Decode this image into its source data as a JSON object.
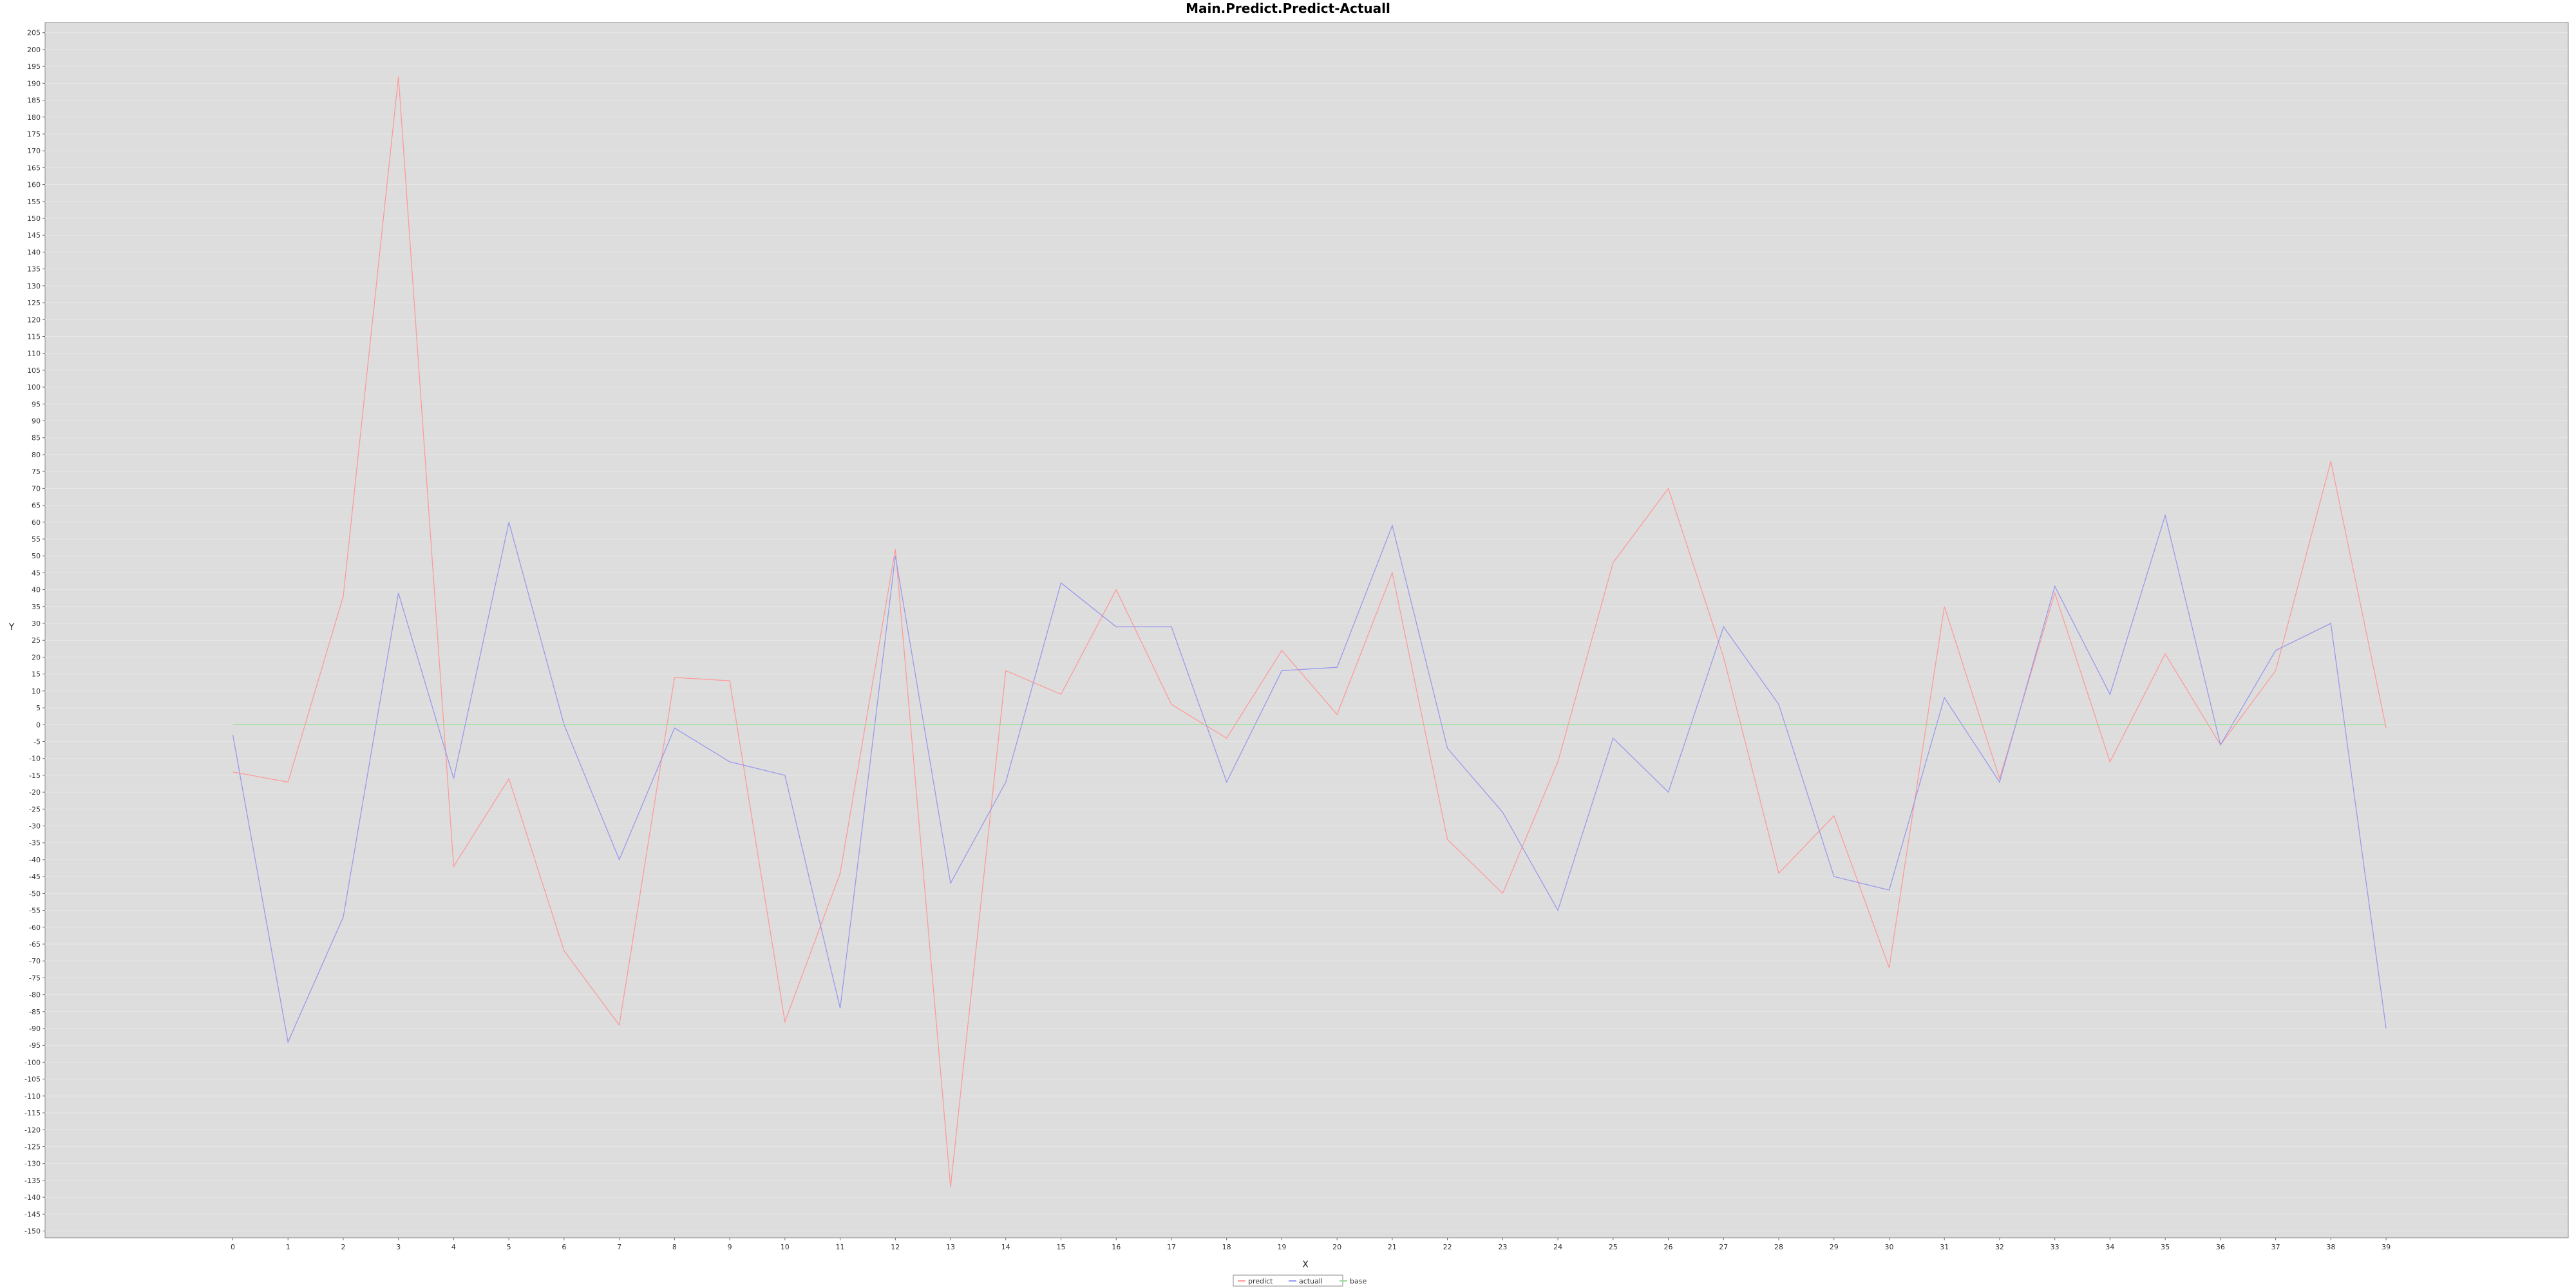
{
  "chart_data": {
    "type": "line",
    "title": "Main.Predict.Predict-Actuall",
    "xlabel": "X",
    "ylabel": "Y",
    "x": [
      0,
      1,
      2,
      3,
      4,
      5,
      6,
      7,
      8,
      9,
      10,
      11,
      12,
      13,
      14,
      15,
      16,
      17,
      18,
      19,
      20,
      21,
      22,
      23,
      24,
      25,
      26,
      27,
      28,
      29,
      30,
      31,
      32,
      33,
      34,
      35,
      36,
      37,
      38,
      39
    ],
    "xlim": [
      -3.4,
      42.3
    ],
    "ylim": [
      -152,
      208
    ],
    "ytick_step": 5,
    "grid": true,
    "legend_position": "bottom-center",
    "series": [
      {
        "name": "predict",
        "color": "#ff9999",
        "values": [
          -14,
          -17,
          38,
          192,
          -42,
          -16,
          -67,
          -89,
          14,
          13,
          -88,
          -44,
          52,
          -137,
          16,
          9,
          40,
          6,
          -4,
          22,
          3,
          45,
          -34,
          -50,
          -11,
          48,
          70,
          20,
          -44,
          -27,
          -72,
          35,
          -16,
          39,
          -11,
          21,
          -6,
          16,
          78,
          -1
        ]
      },
      {
        "name": "actuall",
        "color": "#9999ee",
        "values": [
          -3,
          -94,
          -57,
          39,
          -16,
          60,
          0,
          -40,
          -1,
          -11,
          -15,
          -84,
          50,
          -47,
          -17,
          42,
          29,
          29,
          -17,
          16,
          17,
          59,
          -7,
          -26,
          -55,
          -4,
          -20,
          29,
          6,
          -45,
          -49,
          8,
          -17,
          41,
          9,
          62,
          -6,
          22,
          30,
          -90
        ]
      },
      {
        "name": "base",
        "color": "#99dd99",
        "values": [
          0,
          0,
          0,
          0,
          0,
          0,
          0,
          0,
          0,
          0,
          0,
          0,
          0,
          0,
          0,
          0,
          0,
          0,
          0,
          0,
          0,
          0,
          0,
          0,
          0,
          0,
          0,
          0,
          0,
          0,
          0,
          0,
          0,
          0,
          0,
          0,
          0,
          0,
          0,
          0
        ]
      }
    ]
  }
}
